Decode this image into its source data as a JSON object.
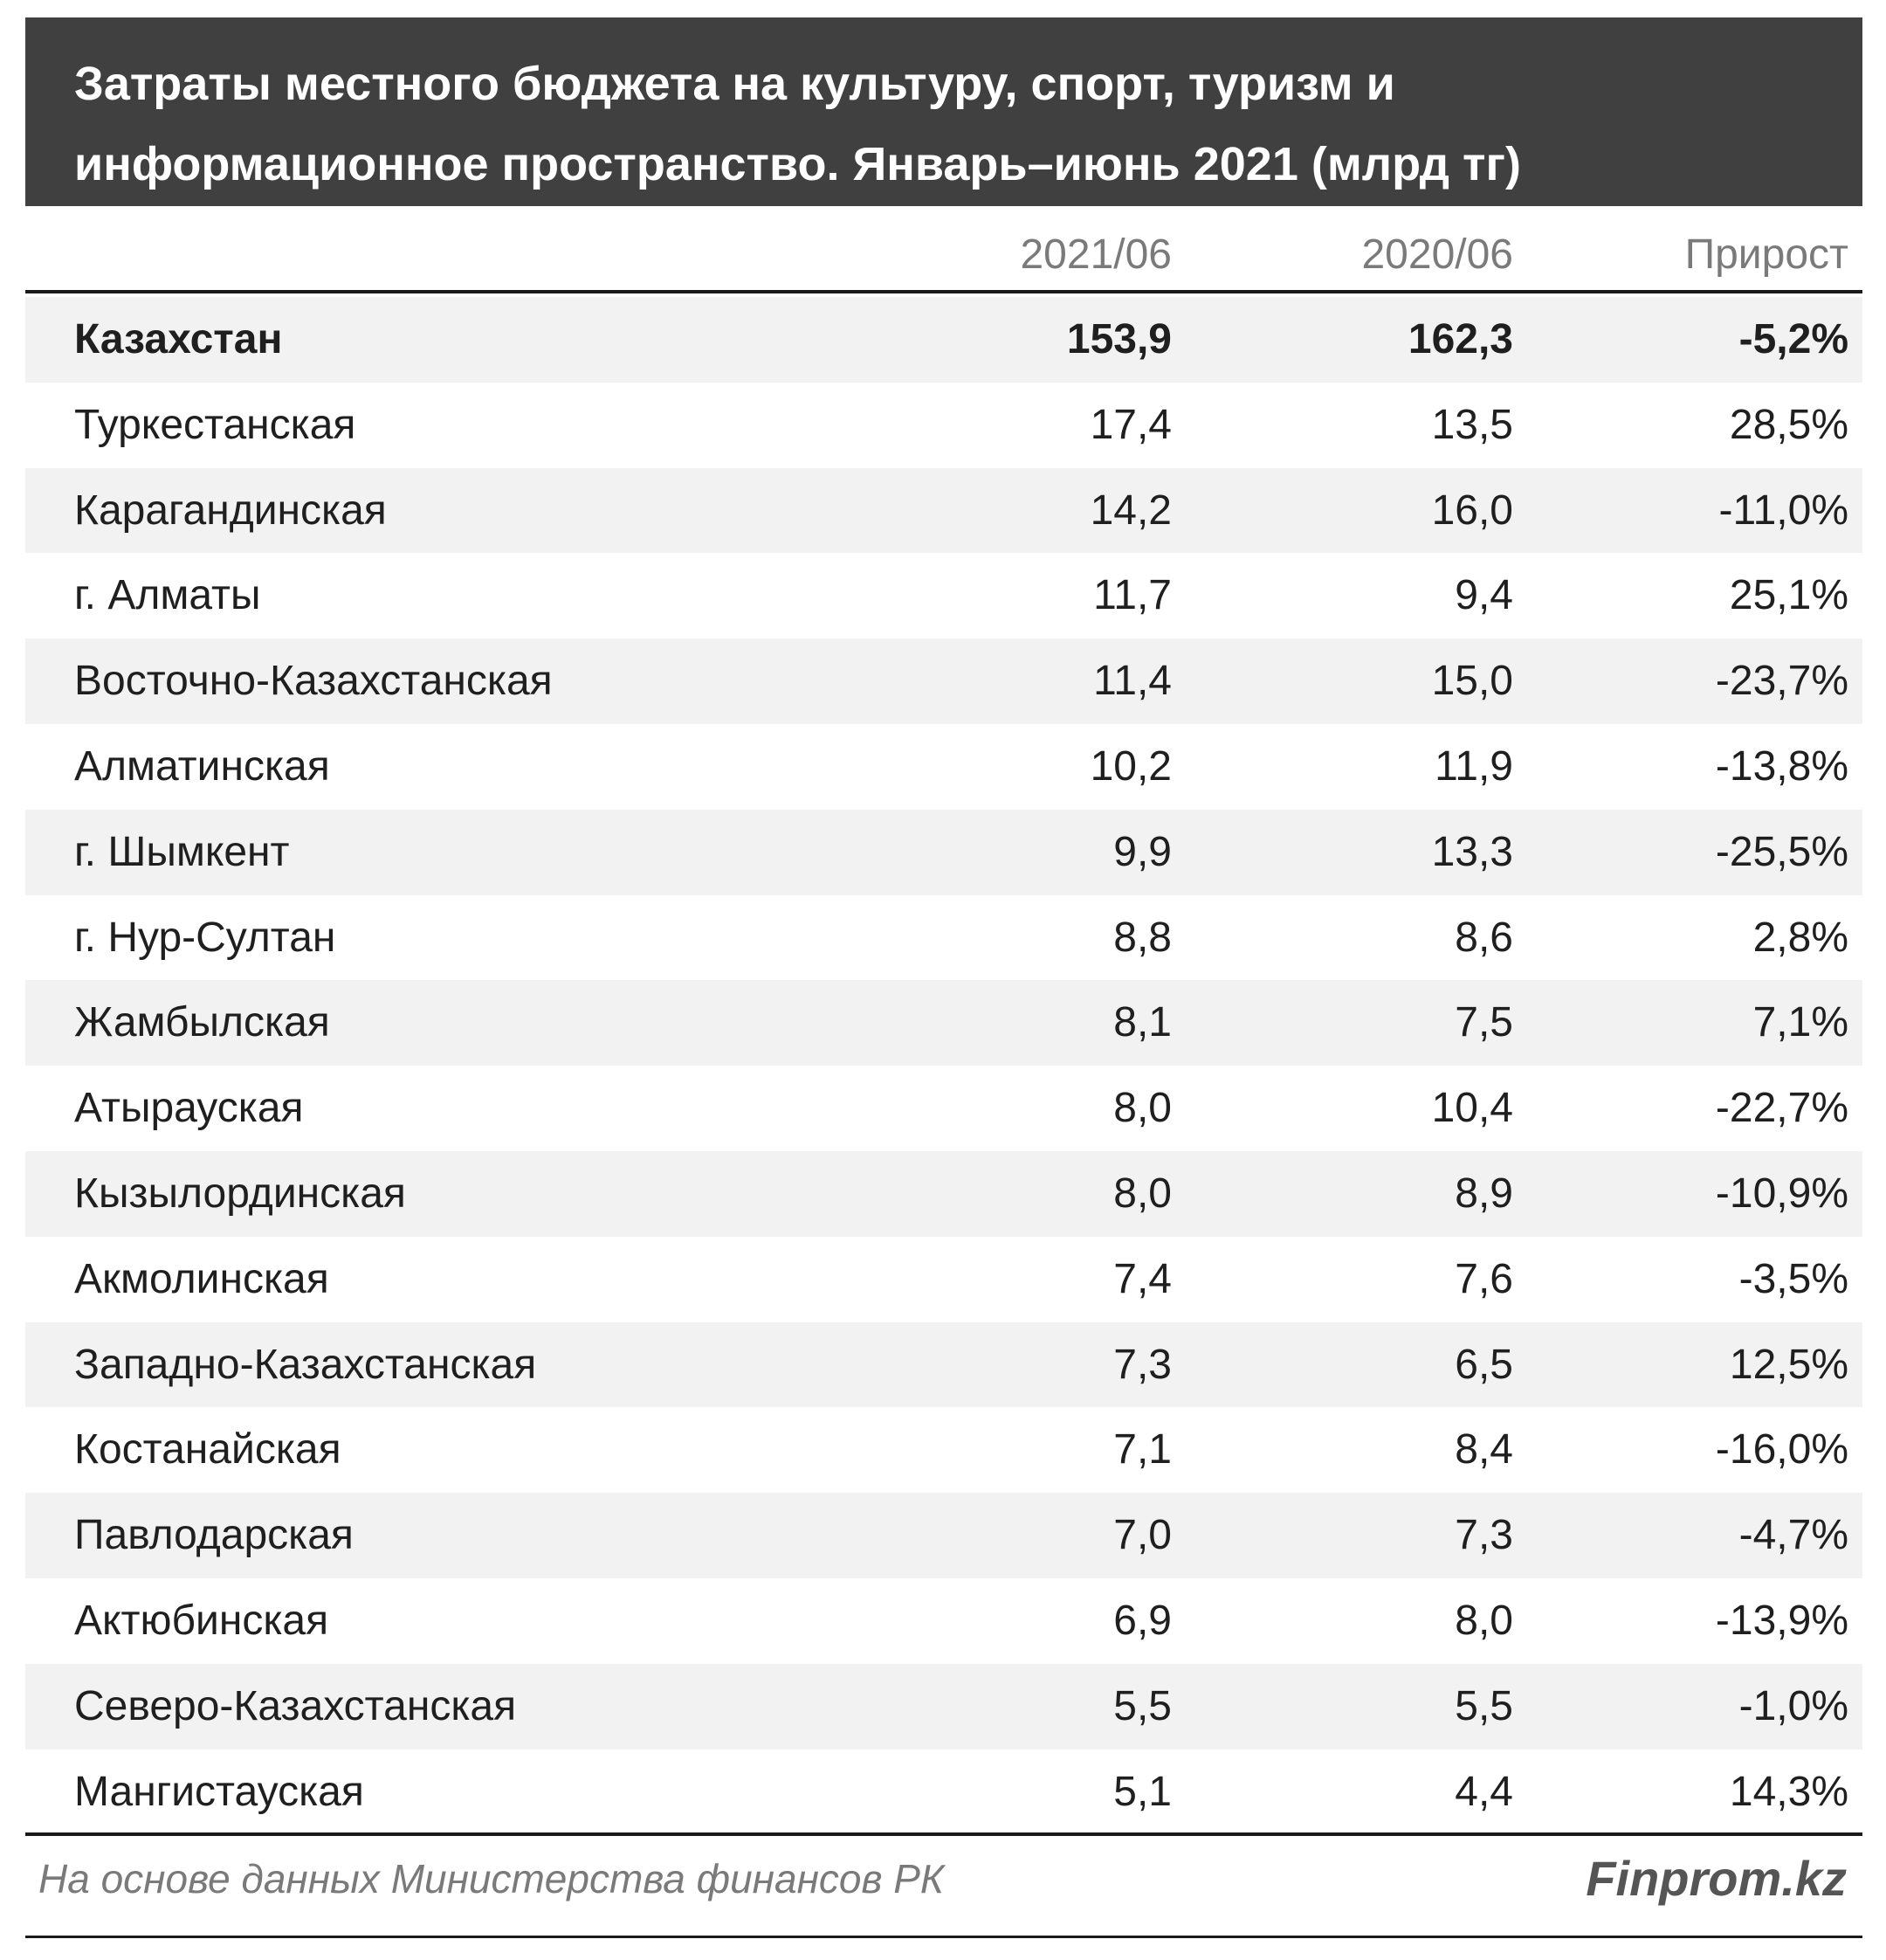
{
  "title": "Затраты местного бюджета на культуру, спорт, туризм и информационное пространство. Январь–июнь 2021 (млрд тг)",
  "columns": [
    "2021/06",
    "2020/06",
    "Прирост"
  ],
  "source": "На основе данных Министерства финансов РК",
  "brand": "Finprom.kz",
  "chart_data": {
    "type": "table",
    "title": "Затраты местного бюджета на культуру, спорт, туризм и информационное пространство. Январь–июнь 2021 (млрд тг)",
    "columns": [
      "",
      "2021/06",
      "2020/06",
      "Прирост"
    ],
    "rows": [
      {
        "name": "Казахстан",
        "v2021": "153,9",
        "v2020": "162,3",
        "growth": "-5,2%"
      },
      {
        "name": "Туркестанская",
        "v2021": "17,4",
        "v2020": "13,5",
        "growth": "28,5%"
      },
      {
        "name": "Карагандинская",
        "v2021": "14,2",
        "v2020": "16,0",
        "growth": "-11,0%"
      },
      {
        "name": "г. Алматы",
        "v2021": "11,7",
        "v2020": "9,4",
        "growth": "25,1%"
      },
      {
        "name": "Восточно-Казахстанская",
        "v2021": "11,4",
        "v2020": "15,0",
        "growth": "-23,7%"
      },
      {
        "name": "Алматинская",
        "v2021": "10,2",
        "v2020": "11,9",
        "growth": "-13,8%"
      },
      {
        "name": "г. Шымкент",
        "v2021": "9,9",
        "v2020": "13,3",
        "growth": "-25,5%"
      },
      {
        "name": "г. Нур-Султан",
        "v2021": "8,8",
        "v2020": "8,6",
        "growth": "2,8%"
      },
      {
        "name": "Жамбылская",
        "v2021": "8,1",
        "v2020": "7,5",
        "growth": "7,1%"
      },
      {
        "name": "Атырауская",
        "v2021": "8,0",
        "v2020": "10,4",
        "growth": "-22,7%"
      },
      {
        "name": "Кызылординская",
        "v2021": "8,0",
        "v2020": "8,9",
        "growth": "-10,9%"
      },
      {
        "name": "Акмолинская",
        "v2021": "7,4",
        "v2020": "7,6",
        "growth": "-3,5%"
      },
      {
        "name": "Западно-Казахстанская",
        "v2021": "7,3",
        "v2020": "6,5",
        "growth": "12,5%"
      },
      {
        "name": "Костанайская",
        "v2021": "7,1",
        "v2020": "8,4",
        "growth": "-16,0%"
      },
      {
        "name": "Павлодарская",
        "v2021": "7,0",
        "v2020": "7,3",
        "growth": "-4,7%"
      },
      {
        "name": "Актюбинская",
        "v2021": "6,9",
        "v2020": "8,0",
        "growth": "-13,9%"
      },
      {
        "name": "Северо-Казахстанская",
        "v2021": "5,5",
        "v2020": "5,5",
        "growth": "-1,0%"
      },
      {
        "name": "Мангистауская",
        "v2021": "5,1",
        "v2020": "4,4",
        "growth": "14,3%"
      }
    ]
  }
}
